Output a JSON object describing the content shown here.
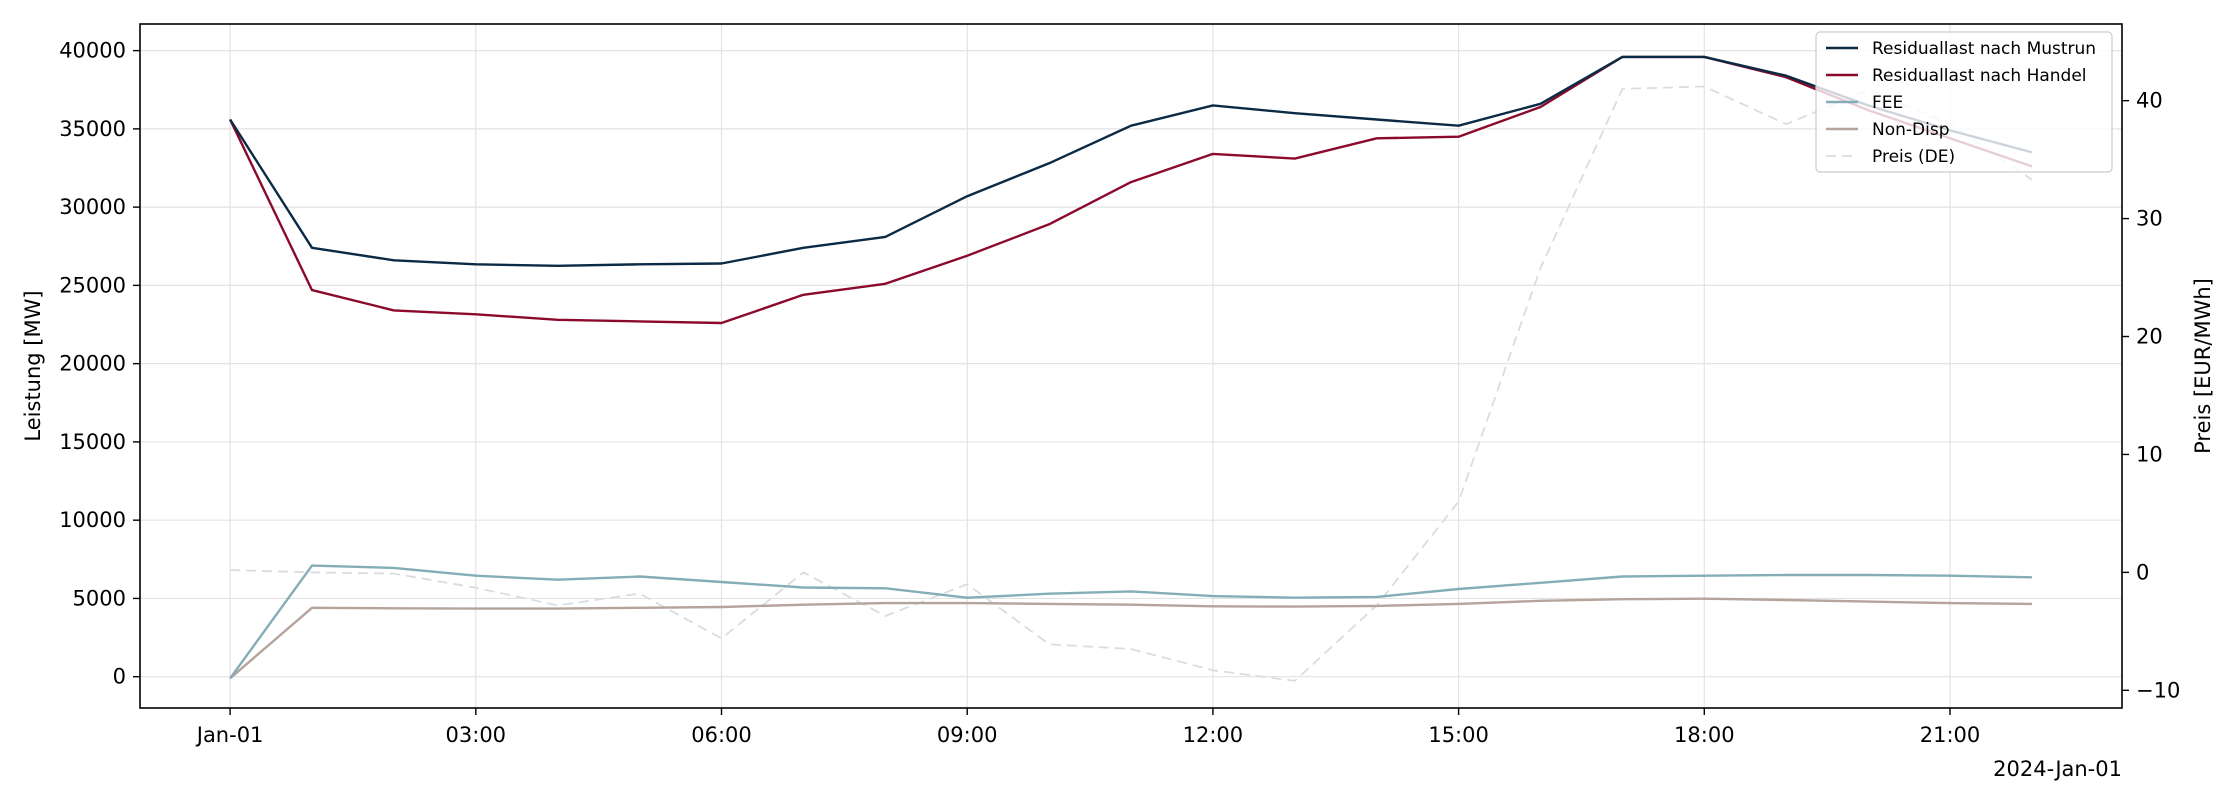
{
  "chart_data": {
    "type": "line",
    "x": [
      "00:00",
      "01:00",
      "02:00",
      "03:00",
      "04:00",
      "05:00",
      "06:00",
      "07:00",
      "08:00",
      "09:00",
      "10:00",
      "11:00",
      "12:00",
      "13:00",
      "14:00",
      "15:00",
      "16:00",
      "17:00",
      "18:00",
      "19:00",
      "20:00",
      "21:00",
      "22:00"
    ],
    "x_ticks": [
      {
        "hour": 0,
        "label": "Jan-01"
      },
      {
        "hour": 3,
        "label": "03:00"
      },
      {
        "hour": 6,
        "label": "06:00"
      },
      {
        "hour": 9,
        "label": "09:00"
      },
      {
        "hour": 12,
        "label": "12:00"
      },
      {
        "hour": 15,
        "label": "15:00"
      },
      {
        "hour": 18,
        "label": "18:00"
      },
      {
        "hour": 21,
        "label": "21:00"
      }
    ],
    "x_offset_label": "2024-Jan-01",
    "xlim": [
      "2024-01-01 -01:06",
      "2024-01-01 23:06"
    ],
    "ylabel": "Leistung [MW]",
    "ylim": [
      -2000,
      41700
    ],
    "yticks": [
      0,
      5000,
      10000,
      15000,
      20000,
      25000,
      30000,
      35000,
      40000
    ],
    "y2label": "Preis [EUR/MWh]",
    "y2lim": [
      -11.5,
      46.5
    ],
    "y2ticks": [
      -10,
      0,
      10,
      20,
      30,
      40
    ],
    "grid": true,
    "legend_position": "top-right",
    "series": [
      {
        "name": "Residuallast nach Mustrun",
        "axis": "left",
        "color": "#0b2a45",
        "style": "solid",
        "values": [
          35600,
          27400,
          26600,
          26350,
          26250,
          26350,
          26400,
          27400,
          28100,
          30700,
          32800,
          35200,
          36500,
          36000,
          35600,
          35200,
          36600,
          39600,
          39600,
          38400,
          36500,
          34900,
          33500
        ]
      },
      {
        "name": "Residuallast nach Handel",
        "axis": "left",
        "color": "#8b0a2c",
        "style": "solid",
        "values": [
          35600,
          24700,
          23400,
          23150,
          22800,
          22700,
          22600,
          24400,
          25100,
          26900,
          28900,
          31600,
          33400,
          33100,
          34400,
          34500,
          36400,
          39600,
          39600,
          38300,
          36200,
          34400,
          32600
        ]
      },
      {
        "name": "FEE",
        "axis": "left",
        "color": "#84adb8",
        "style": "solid",
        "values": [
          -100,
          7100,
          6950,
          6450,
          6200,
          6400,
          6050,
          5700,
          5650,
          5050,
          5300,
          5450,
          5150,
          5050,
          5100,
          5600,
          6000,
          6400,
          6450,
          6500,
          6500,
          6450,
          6350
        ]
      },
      {
        "name": "Non-Disp",
        "axis": "left",
        "color": "#b5a49c",
        "style": "solid",
        "values": [
          -100,
          4400,
          4370,
          4350,
          4350,
          4400,
          4450,
          4600,
          4700,
          4700,
          4650,
          4600,
          4500,
          4480,
          4520,
          4650,
          4850,
          4950,
          4980,
          4900,
          4800,
          4700,
          4650
        ]
      },
      {
        "name": "Preis (DE)",
        "axis": "right",
        "color": "#d8dde3",
        "style": "dashed",
        "values": [
          0.2,
          0.0,
          -0.1,
          -1.3,
          -2.8,
          -1.8,
          -5.6,
          0.0,
          -3.7,
          -1.0,
          -6.1,
          -6.5,
          -8.3,
          -9.2,
          -2.8,
          6.0,
          25.8,
          41.0,
          41.2,
          38.0,
          40.9,
          38.0,
          33.3
        ]
      }
    ]
  }
}
